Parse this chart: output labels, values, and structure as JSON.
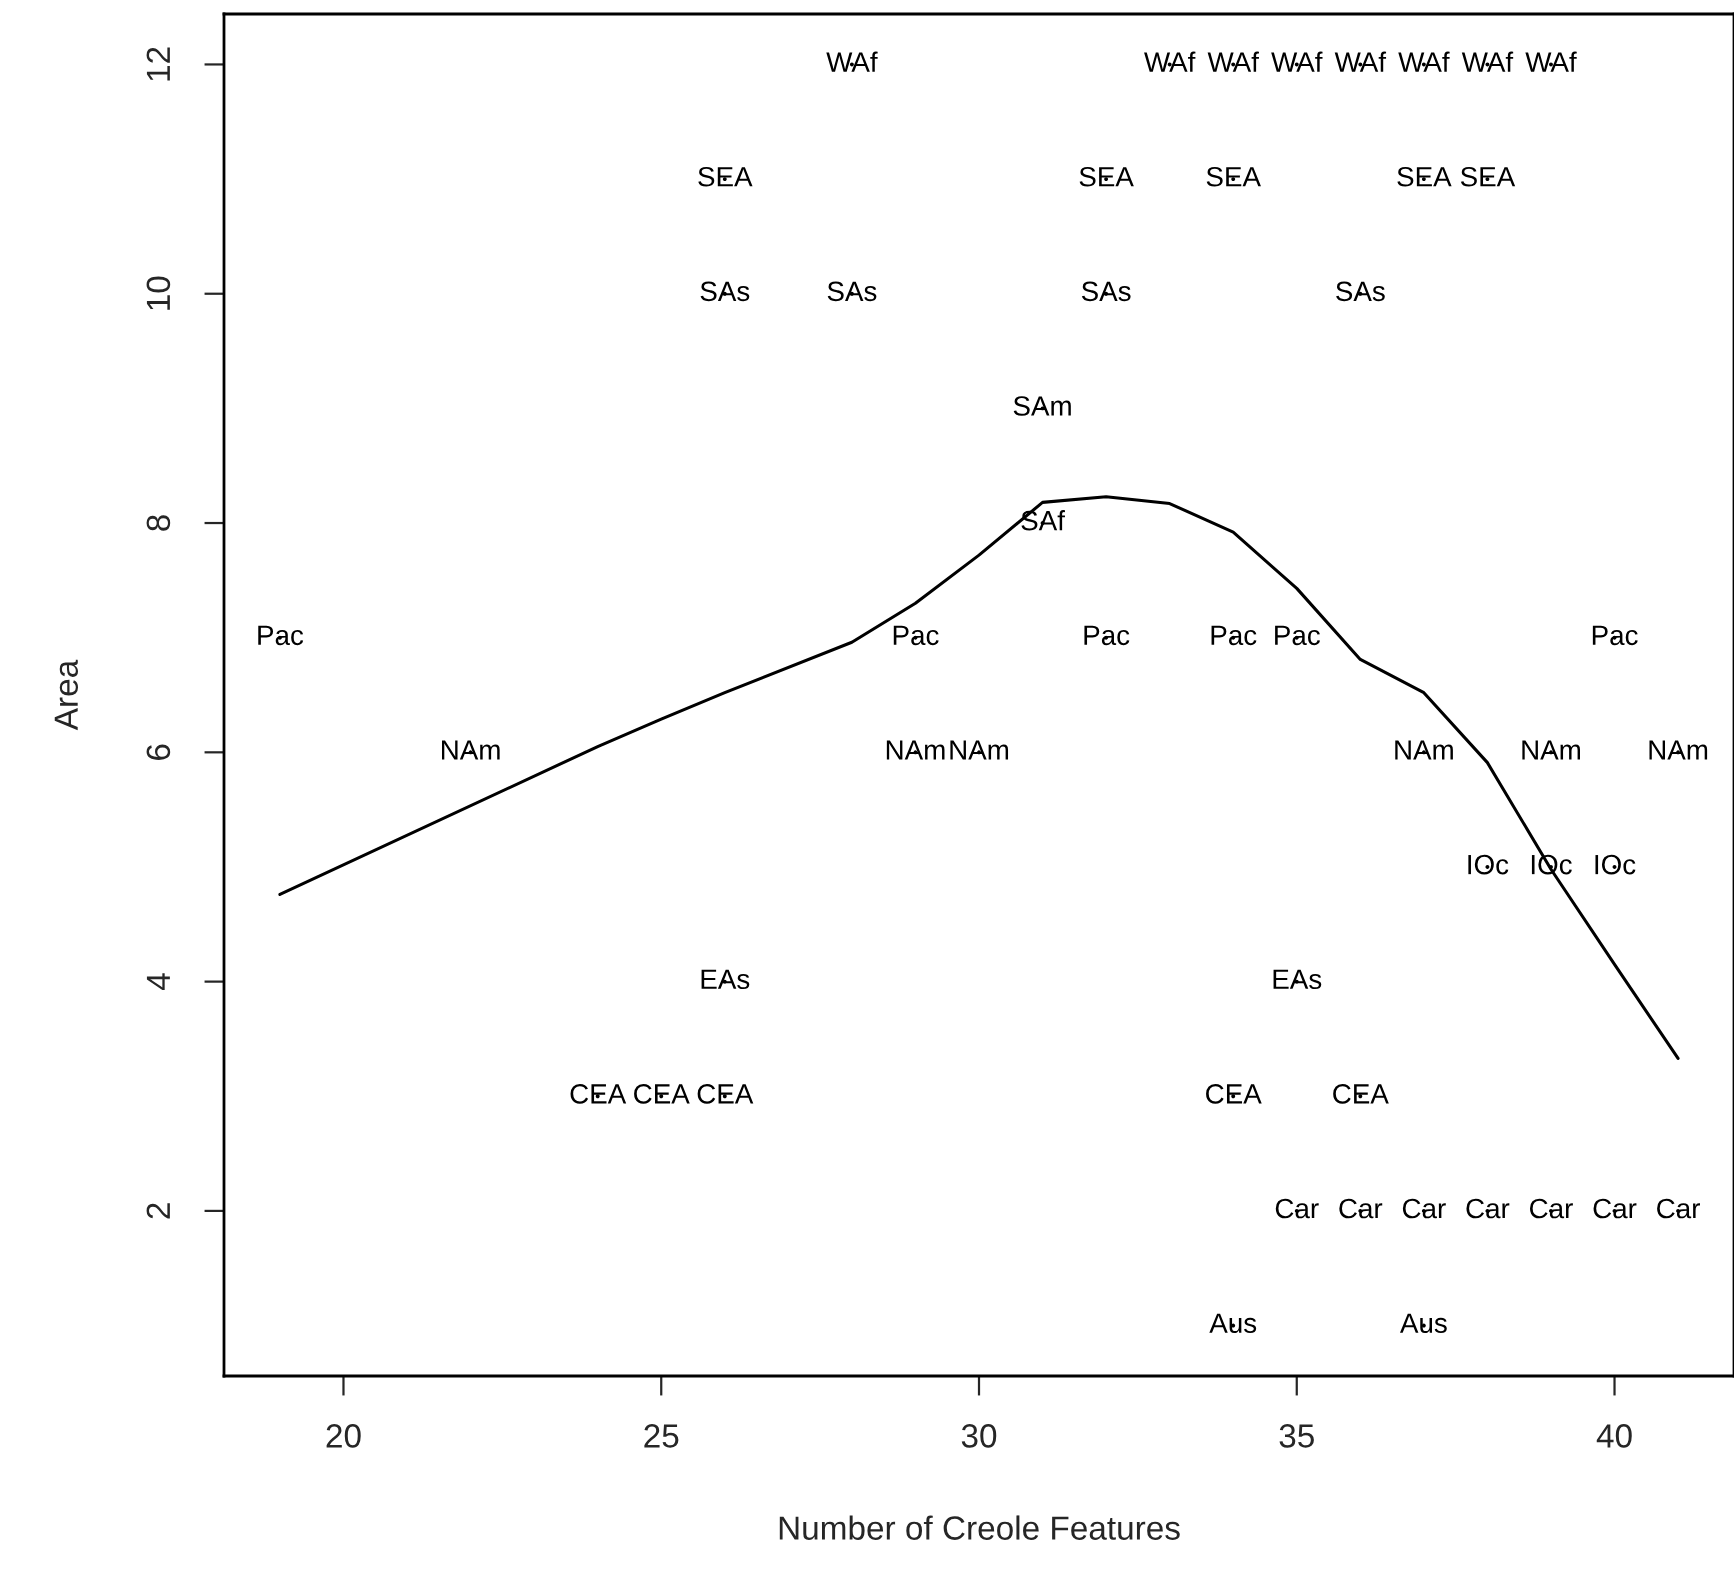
{
  "chart_data": {
    "type": "scatter",
    "xlabel": "Number of Creole Features",
    "ylabel": "Area",
    "xlim": [
      18.12,
      41.88
    ],
    "ylim": [
      0.56,
      12.44
    ],
    "xticks": [
      20,
      25,
      30,
      35,
      40
    ],
    "yticks": [
      2,
      4,
      6,
      8,
      10,
      12
    ],
    "grid": false,
    "legend": false,
    "marker": "none",
    "series": [
      {
        "color": "#000000",
        "x": [
          28,
          33,
          34,
          35,
          36,
          37,
          38,
          39,
          26,
          32,
          34,
          37,
          38,
          26,
          28,
          32,
          36,
          31,
          31,
          19,
          29,
          32,
          34,
          35,
          40,
          22,
          29,
          30,
          37,
          39,
          41,
          38,
          39,
          40,
          26,
          35,
          24,
          25,
          26,
          34,
          36,
          35,
          36,
          37,
          38,
          39,
          40,
          41,
          34,
          37
        ],
        "values": [
          12,
          12,
          12,
          12,
          12,
          12,
          12,
          12,
          11,
          11,
          11,
          11,
          11,
          10,
          10,
          10,
          10,
          9,
          8,
          7,
          7,
          7,
          7,
          7,
          7,
          6,
          6,
          6,
          6,
          6,
          6,
          5,
          5,
          5,
          4,
          4,
          3,
          3,
          3,
          3,
          3,
          2,
          2,
          2,
          2,
          2,
          2,
          2,
          1,
          1
        ],
        "value_labels": [
          "WAf",
          "WAf",
          "WAf",
          "WAf",
          "WAf",
          "WAf",
          "WAf",
          "WAf",
          "SEA",
          "SEA",
          "SEA",
          "SEA",
          "SEA",
          "SAs",
          "SAs",
          "SAs",
          "SAs",
          "SAm",
          "SAf",
          "Pac",
          "Pac",
          "Pac",
          "Pac",
          "Pac",
          "Pac",
          "NAm",
          "NAm",
          "NAm",
          "NAm",
          "NAm",
          "NAm",
          "IOc",
          "IOc",
          "IOc",
          "EAs",
          "EAs",
          "CEA",
          "CEA",
          "CEA",
          "CEA",
          "CEA",
          "Car",
          "Car",
          "Car",
          "Car",
          "Car",
          "Car",
          "Car",
          "Aus",
          "Aus"
        ]
      },
      {
        "type": "line",
        "color": "#000000",
        "line_style": "solid",
        "x": [
          19,
          24,
          25,
          26,
          28,
          29,
          30,
          31,
          32,
          33,
          34,
          35,
          36,
          37,
          38,
          39,
          40,
          41
        ],
        "values": [
          4.76,
          6.05,
          6.29,
          6.52,
          6.96,
          7.3,
          7.72,
          8.18,
          8.23,
          8.17,
          7.92,
          7.43,
          6.81,
          6.52,
          5.91,
          4.98,
          4.15,
          3.33
        ]
      }
    ]
  }
}
